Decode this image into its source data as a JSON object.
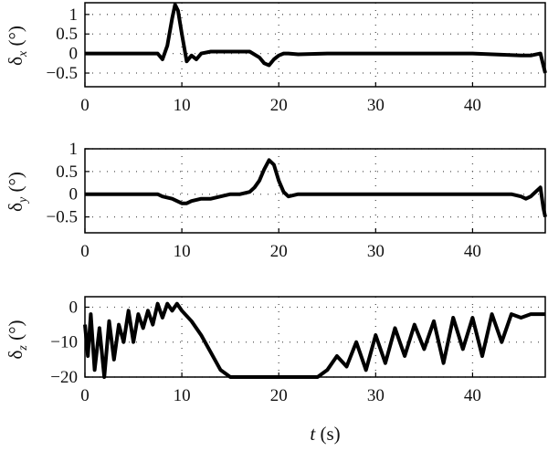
{
  "chart_data": [
    {
      "type": "line",
      "ylabel_symbol": "δ",
      "ylabel_sub": "x",
      "ylabel_unit": "(°)",
      "xlim": [
        0,
        47.5
      ],
      "ylim": [
        -0.85,
        1.3
      ],
      "xticks": [
        0,
        10,
        20,
        30,
        40
      ],
      "yticks": [
        -0.5,
        0,
        0.5,
        1
      ],
      "ytick_labels": [
        "−0.5",
        "0",
        "0.5",
        "1"
      ],
      "grid": true,
      "series": [
        {
          "x": [
            0,
            5,
            7.5,
            8,
            8.5,
            9,
            9.3,
            9.6,
            10,
            10.5,
            11,
            11.5,
            12,
            13,
            15,
            17,
            18,
            18.5,
            19,
            19.5,
            20,
            20.5,
            21,
            22,
            25,
            30,
            35,
            40,
            45,
            46,
            47,
            47.5
          ],
          "y": [
            0,
            0,
            0,
            -0.15,
            0.2,
            0.9,
            1.25,
            1.1,
            0.5,
            -0.2,
            -0.05,
            -0.15,
            0,
            0.05,
            0.05,
            0.05,
            -0.1,
            -0.25,
            -0.3,
            -0.15,
            -0.05,
            0,
            0,
            -0.02,
            0,
            0,
            0,
            0,
            -0.05,
            -0.05,
            0,
            -0.5
          ]
        }
      ]
    },
    {
      "type": "line",
      "ylabel_symbol": "δ",
      "ylabel_sub": "y",
      "ylabel_unit": "(°)",
      "xlim": [
        0,
        47.5
      ],
      "ylim": [
        -0.85,
        1.0
      ],
      "xticks": [
        0,
        10,
        20,
        30,
        40
      ],
      "yticks": [
        -0.5,
        0,
        0.5,
        1
      ],
      "ytick_labels": [
        "−0.5",
        "0",
        "0.5",
        "1"
      ],
      "grid": true,
      "series": [
        {
          "x": [
            0,
            5,
            7.5,
            8,
            9,
            10,
            10.5,
            11,
            12,
            13,
            14,
            15,
            16,
            17,
            17.5,
            18,
            18.5,
            19,
            19.5,
            20,
            20.5,
            21,
            22,
            25,
            30,
            35,
            40,
            44,
            45,
            45.5,
            46,
            46.5,
            47,
            47.3,
            47.5
          ],
          "y": [
            0,
            0,
            0,
            -0.05,
            -0.1,
            -0.2,
            -0.2,
            -0.15,
            -0.1,
            -0.1,
            -0.05,
            0,
            0,
            0.05,
            0.15,
            0.3,
            0.55,
            0.75,
            0.65,
            0.3,
            0.05,
            -0.05,
            0,
            0,
            0,
            0,
            0,
            0,
            -0.05,
            -0.1,
            -0.05,
            0.05,
            0.15,
            -0.3,
            -0.5
          ]
        }
      ]
    },
    {
      "type": "line",
      "ylabel_symbol": "δ",
      "ylabel_sub": "z",
      "ylabel_unit": "(°)",
      "xlim": [
        0,
        47.5
      ],
      "ylim": [
        -20,
        3
      ],
      "xticks": [
        0,
        10,
        20,
        30,
        40
      ],
      "yticks": [
        -20,
        -10,
        0
      ],
      "ytick_labels": [
        "−20",
        "−10",
        "0"
      ],
      "xlabel_symbol": "t",
      "xlabel_unit": "(s)",
      "grid": true,
      "series": [
        {
          "x": [
            0,
            0.3,
            0.6,
            1,
            1.5,
            2,
            2.5,
            3,
            3.5,
            4,
            4.5,
            5,
            5.5,
            6,
            6.5,
            7,
            7.5,
            8,
            8.5,
            9,
            9.5,
            10,
            11,
            12,
            13,
            14,
            15,
            16,
            18,
            20,
            22,
            24,
            25,
            26,
            27,
            28,
            29,
            30,
            31,
            32,
            33,
            34,
            35,
            36,
            37,
            38,
            39,
            40,
            41,
            42,
            43,
            44,
            45,
            46,
            47,
            47.5
          ],
          "y": [
            -5,
            -14,
            -2,
            -18,
            -6,
            -20,
            -4,
            -15,
            -5,
            -10,
            -1,
            -10,
            -2,
            -6,
            -1,
            -5,
            1,
            -3,
            1,
            -1,
            1,
            -1,
            -4,
            -8,
            -13,
            -18,
            -20,
            -20,
            -20,
            -20,
            -20,
            -20,
            -18,
            -14,
            -17,
            -10,
            -18,
            -8,
            -16,
            -6,
            -14,
            -5,
            -12,
            -4,
            -16,
            -3,
            -12,
            -3,
            -14,
            -2,
            -10,
            -2,
            -3,
            -2,
            -2,
            -2
          ]
        }
      ]
    }
  ]
}
